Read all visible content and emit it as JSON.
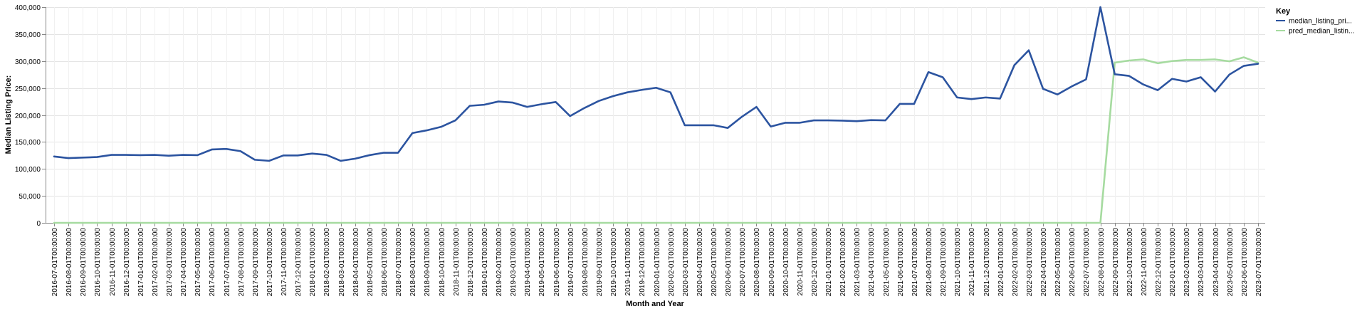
{
  "chart_data": {
    "type": "line",
    "xlabel": "Month and Year",
    "ylabel": "Median Listing Price:",
    "ylim": [
      0,
      400000
    ],
    "y_ticks": [
      "0",
      "50,000",
      "100,000",
      "150,000",
      "200,000",
      "250,000",
      "300,000",
      "350,000",
      "400,000"
    ],
    "y_tick_values": [
      0,
      50000,
      100000,
      150000,
      200000,
      250000,
      300000,
      350000,
      400000
    ],
    "grid": true,
    "legend": {
      "title": "Key",
      "position": "right"
    },
    "x": [
      "2016-07-01T00:00:00",
      "2016-08-01T00:00:00",
      "2016-09-01T00:00:00",
      "2016-10-01T00:00:00",
      "2016-11-01T00:00:00",
      "2016-12-01T00:00:00",
      "2017-01-01T00:00:00",
      "2017-02-01T00:00:00",
      "2017-03-01T00:00:00",
      "2017-04-01T00:00:00",
      "2017-05-01T00:00:00",
      "2017-06-01T00:00:00",
      "2017-07-01T00:00:00",
      "2017-08-01T00:00:00",
      "2017-09-01T00:00:00",
      "2017-10-01T00:00:00",
      "2017-11-01T00:00:00",
      "2017-12-01T00:00:00",
      "2018-01-01T00:00:00",
      "2018-02-01T00:00:00",
      "2018-03-01T00:00:00",
      "2018-04-01T00:00:00",
      "2018-05-01T00:00:00",
      "2018-06-01T00:00:00",
      "2018-07-01T00:00:00",
      "2018-08-01T00:00:00",
      "2018-09-01T00:00:00",
      "2018-10-01T00:00:00",
      "2018-11-01T00:00:00",
      "2018-12-01T00:00:00",
      "2019-01-01T00:00:00",
      "2019-02-01T00:00:00",
      "2019-03-01T00:00:00",
      "2019-04-01T00:00:00",
      "2019-05-01T00:00:00",
      "2019-06-01T00:00:00",
      "2019-07-01T00:00:00",
      "2019-08-01T00:00:00",
      "2019-09-01T00:00:00",
      "2019-10-01T00:00:00",
      "2019-11-01T00:00:00",
      "2019-12-01T00:00:00",
      "2020-01-01T00:00:00",
      "2020-02-01T00:00:00",
      "2020-03-01T00:00:00",
      "2020-04-01T00:00:00",
      "2020-05-01T00:00:00",
      "2020-06-01T00:00:00",
      "2020-07-01T00:00:00",
      "2020-08-01T00:00:00",
      "2020-09-01T00:00:00",
      "2020-10-01T00:00:00",
      "2020-11-01T00:00:00",
      "2020-12-01T00:00:00",
      "2021-01-01T00:00:00",
      "2021-02-01T00:00:00",
      "2021-03-01T00:00:00",
      "2021-04-01T00:00:00",
      "2021-05-01T00:00:00",
      "2021-06-01T00:00:00",
      "2021-07-01T00:00:00",
      "2021-08-01T00:00:00",
      "2021-09-01T00:00:00",
      "2021-10-01T00:00:00",
      "2021-11-01T00:00:00",
      "2021-12-01T00:00:00",
      "2022-01-01T00:00:00",
      "2022-02-01T00:00:00",
      "2022-03-01T00:00:00",
      "2022-04-01T00:00:00",
      "2022-05-01T00:00:00",
      "2022-06-01T00:00:00",
      "2022-07-01T00:00:00",
      "2022-08-01T00:00:00",
      "2022-09-01T00:00:00",
      "2022-10-01T00:00:00",
      "2022-11-01T00:00:00",
      "2022-12-01T00:00:00",
      "2023-01-01T00:00:00",
      "2023-02-01T00:00:00",
      "2023-03-01T00:00:00",
      "2023-04-01T00:00:00",
      "2023-05-01T00:00:00",
      "2023-06-01T00:00:00",
      "2023-07-01T00:00:00"
    ],
    "series": [
      {
        "name": "median_listing_pri...",
        "color": "#2c54a0",
        "values": [
          123000,
          120000,
          121000,
          122000,
          126000,
          126000,
          125500,
          126000,
          124500,
          126000,
          125500,
          136000,
          137000,
          133000,
          117000,
          115000,
          125000,
          125000,
          128500,
          126000,
          115000,
          119000,
          125500,
          130000,
          130000,
          166500,
          171500,
          178000,
          190000,
          217000,
          219000,
          225000,
          223000,
          215000,
          220000,
          224000,
          198000,
          213000,
          226000,
          235000,
          242000,
          246500,
          250500,
          242000,
          181000,
          181000,
          181000,
          176000,
          197000,
          215000,
          178500,
          185500,
          185500,
          190000,
          190000,
          189500,
          188500,
          190500,
          190000,
          220500,
          220500,
          279500,
          270000,
          232500,
          229500,
          232500,
          230500,
          292500,
          320000,
          248500,
          238000,
          253000,
          266000,
          400000,
          275500,
          272500,
          256500,
          246000,
          267000,
          262000,
          270000,
          243500,
          275000,
          291000,
          295000
        ]
      },
      {
        "name": "pred_median_listin...",
        "color": "#a6dba0",
        "values": [
          0,
          0,
          0,
          0,
          0,
          0,
          0,
          0,
          0,
          0,
          0,
          0,
          0,
          0,
          0,
          0,
          0,
          0,
          0,
          0,
          0,
          0,
          0,
          0,
          0,
          0,
          0,
          0,
          0,
          0,
          0,
          0,
          0,
          0,
          0,
          0,
          0,
          0,
          0,
          0,
          0,
          0,
          0,
          0,
          0,
          0,
          0,
          0,
          0,
          0,
          0,
          0,
          0,
          0,
          0,
          0,
          0,
          0,
          0,
          0,
          0,
          0,
          0,
          0,
          0,
          0,
          0,
          0,
          0,
          0,
          0,
          0,
          0,
          0,
          297000,
          301000,
          303000,
          296000,
          300000,
          302000,
          302000,
          303000,
          299500,
          307000,
          297000
        ]
      }
    ]
  }
}
